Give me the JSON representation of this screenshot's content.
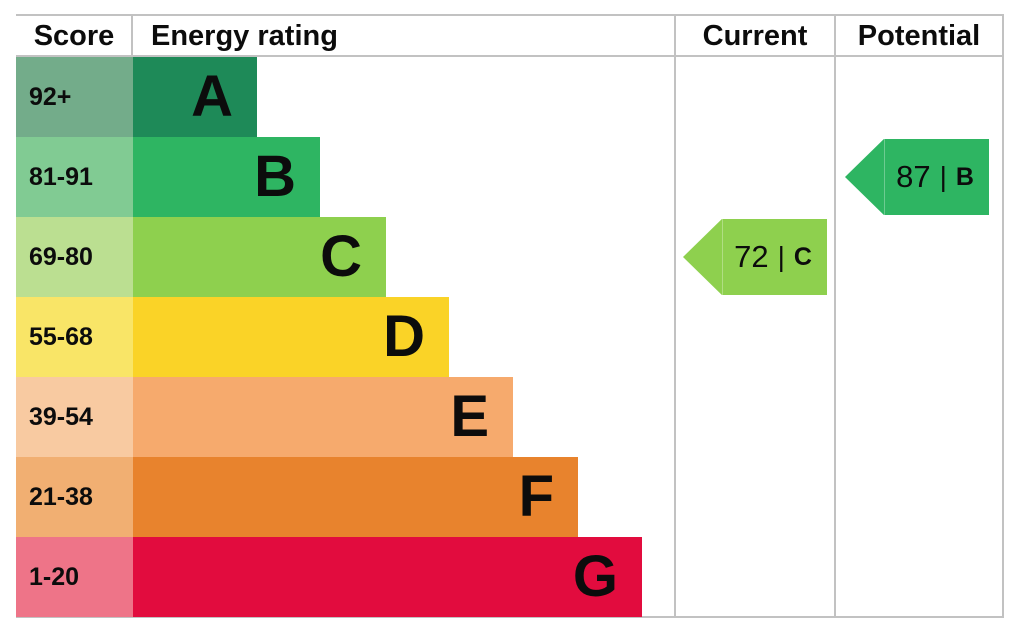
{
  "header": {
    "score": "Score",
    "energy_rating": "Energy rating",
    "current": "Current",
    "potential": "Potential"
  },
  "bands": [
    {
      "letter": "A",
      "score_range": "92+",
      "color": "#1e8a58",
      "score_color": "#73ac8a"
    },
    {
      "letter": "B",
      "score_range": "81-91",
      "color": "#2eb562",
      "score_color": "#81cb93"
    },
    {
      "letter": "C",
      "score_range": "69-80",
      "color": "#8ed04e",
      "score_color": "#bbdf91"
    },
    {
      "letter": "D",
      "score_range": "55-68",
      "color": "#fad327",
      "score_color": "#f9e567"
    },
    {
      "letter": "E",
      "score_range": "39-54",
      "color": "#f6aa6d",
      "score_color": "#f8caa1"
    },
    {
      "letter": "F",
      "score_range": "21-38",
      "color": "#e8832d",
      "score_color": "#f1af72"
    },
    {
      "letter": "G",
      "score_range": "1-20",
      "color": "#e20c3e",
      "score_color": "#ee7488"
    }
  ],
  "current": {
    "value": "72",
    "separator": "|",
    "letter": "C",
    "color": "#8ed04e"
  },
  "potential": {
    "value": "87",
    "separator": "|",
    "letter": "B",
    "color": "#2eb562"
  },
  "colors": {
    "grid": "#c2c2c2",
    "background": "#ffffff",
    "text": "#0c0c0c"
  },
  "chart_data": {
    "type": "bar",
    "title": "Energy rating",
    "categories": [
      "A",
      "B",
      "C",
      "D",
      "E",
      "F",
      "G"
    ],
    "score_ranges": [
      "92+",
      "81-91",
      "69-80",
      "55-68",
      "39-54",
      "21-38",
      "1-20"
    ],
    "band_colors": [
      "#1e8a58",
      "#2eb562",
      "#8ed04e",
      "#fad327",
      "#f6aa6d",
      "#e8832d",
      "#e20c3e"
    ],
    "bar_relative_widths": [
      124,
      187,
      253,
      316,
      380,
      445,
      509
    ],
    "current": {
      "value": 72,
      "band": "C"
    },
    "potential": {
      "value": 87,
      "band": "B"
    },
    "legend_position": "none",
    "grid": false
  }
}
